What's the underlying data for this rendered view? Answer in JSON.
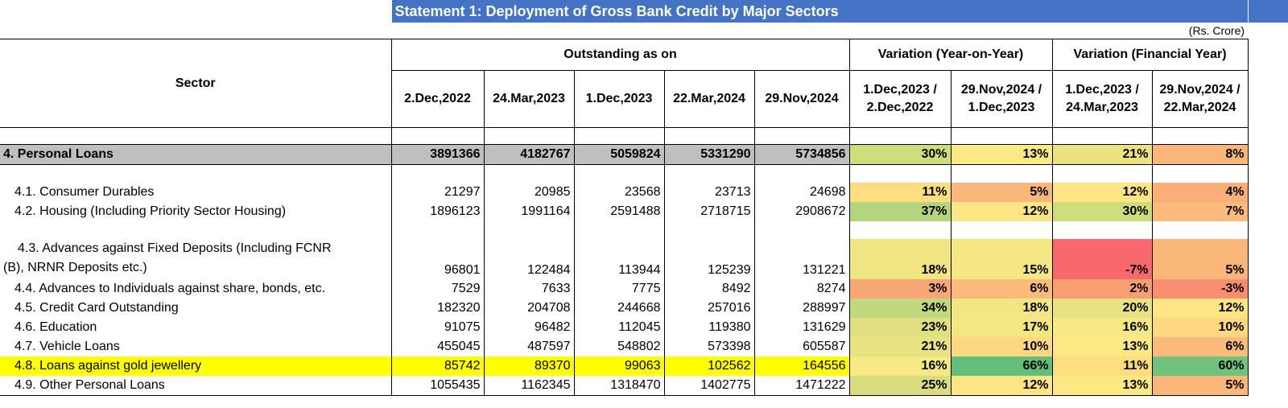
{
  "title": "Statement 1: Deployment of Gross Bank Credit by Major Sectors",
  "unit": "(Rs. Crore)",
  "header": {
    "sector": "Sector",
    "outstanding": "Outstanding as on",
    "var_yoy": "Variation (Year-on-Year)",
    "var_fy": "Variation (Financial Year)",
    "dates": [
      "2.Dec,2022",
      "24.Mar,2023",
      "1.Dec,2023",
      "22.Mar,2024",
      "29.Nov,2024"
    ],
    "yoy": [
      {
        "l1": "1.Dec,2023 /",
        "l2": "2.Dec,2022"
      },
      {
        "l1": "29.Nov,2024 /",
        "l2": "1.Dec,2023"
      }
    ],
    "fy": [
      {
        "l1": "1.Dec,2023 /",
        "l2": "24.Mar,2023"
      },
      {
        "l1": "29.Nov,2024 /",
        "l2": "22.Mar,2024"
      }
    ]
  },
  "personal_loans": {
    "label": "4. Personal Loans",
    "values": [
      "3891366",
      "4182767",
      "5059824",
      "5331290",
      "5734856"
    ],
    "pcts": [
      "30%",
      "13%",
      "21%",
      "8%"
    ],
    "colors": [
      "#cfdc7c",
      "#fde984",
      "#eae382",
      "#fbb77a"
    ]
  },
  "rows": [
    {
      "label": "4.1. Consumer Durables",
      "values": [
        "21297",
        "20985",
        "23568",
        "23713",
        "24698"
      ],
      "pcts": [
        "11%",
        "5%",
        "12%",
        "4%"
      ],
      "colors": [
        "#fedd81",
        "#fbb77a",
        "#fde583",
        "#fbae78"
      ]
    },
    {
      "label": "4.2. Housing (Including Priority Sector Housing)",
      "values": [
        "1896123",
        "1991164",
        "2591488",
        "2718715",
        "2908672"
      ],
      "pcts": [
        "37%",
        "12%",
        "30%",
        "7%"
      ],
      "colors": [
        "#b5d47e",
        "#fde583",
        "#cfdc7c",
        "#fbbc7b"
      ]
    },
    {
      "label_l1": "4.3. Advances against Fixed Deposits (Including FCNR",
      "label_l2": "(B), NRNR Deposits etc.)",
      "values": [
        "96801",
        "122484",
        "113944",
        "125239",
        "131221"
      ],
      "pcts": [
        "18%",
        "15%",
        "-7%",
        "5%"
      ],
      "colors": [
        "#efe583",
        "#f5e884",
        "#f8696b",
        "#fbb77a"
      ]
    },
    {
      "label": "4.4. Advances to Individuals against share, bonds, etc.",
      "values": [
        "7529",
        "7633",
        "7775",
        "8492",
        "8274"
      ],
      "pcts": [
        "3%",
        "6%",
        "2%",
        "-3%"
      ],
      "colors": [
        "#f9a676",
        "#fbbb7b",
        "#f99e73",
        "#f88e6f"
      ]
    },
    {
      "label": "4.5. Credit Card Outstanding",
      "values": [
        "182320",
        "204708",
        "244668",
        "257016",
        "288997"
      ],
      "pcts": [
        "34%",
        "18%",
        "20%",
        "12%"
      ],
      "colors": [
        "#c2d87e",
        "#f1e683",
        "#e7e282",
        "#fde583"
      ]
    },
    {
      "label": "4.6. Education",
      "values": [
        "91075",
        "96482",
        "112045",
        "119380",
        "131629"
      ],
      "pcts": [
        "23%",
        "17%",
        "16%",
        "10%"
      ],
      "colors": [
        "#e0e081",
        "#f3e784",
        "#f6e884",
        "#fed880"
      ]
    },
    {
      "label": "4.7. Vehicle Loans",
      "values": [
        "455045",
        "487597",
        "548802",
        "573398",
        "605587"
      ],
      "pcts": [
        "21%",
        "10%",
        "13%",
        "6%"
      ],
      "colors": [
        "#e7e282",
        "#fed880",
        "#fde984",
        "#fbbb7b"
      ]
    },
    {
      "label": "4.8. Loans against gold jewellery",
      "values": [
        "85742",
        "89370",
        "99063",
        "102562",
        "164556"
      ],
      "pcts": [
        "16%",
        "66%",
        "11%",
        "60%"
      ],
      "colors": [
        "#f6e884",
        "#63be7b",
        "#fedd81",
        "#70c27c"
      ],
      "highlight": "#ffff00"
    },
    {
      "label": "4.9. Other Personal Loans",
      "values": [
        "1055435",
        "1162345",
        "1318470",
        "1402775",
        "1471222"
      ],
      "pcts": [
        "25%",
        "12%",
        "13%",
        "5%"
      ],
      "colors": [
        "#d9dd80",
        "#fde583",
        "#fde984",
        "#fbb77a"
      ]
    }
  ]
}
